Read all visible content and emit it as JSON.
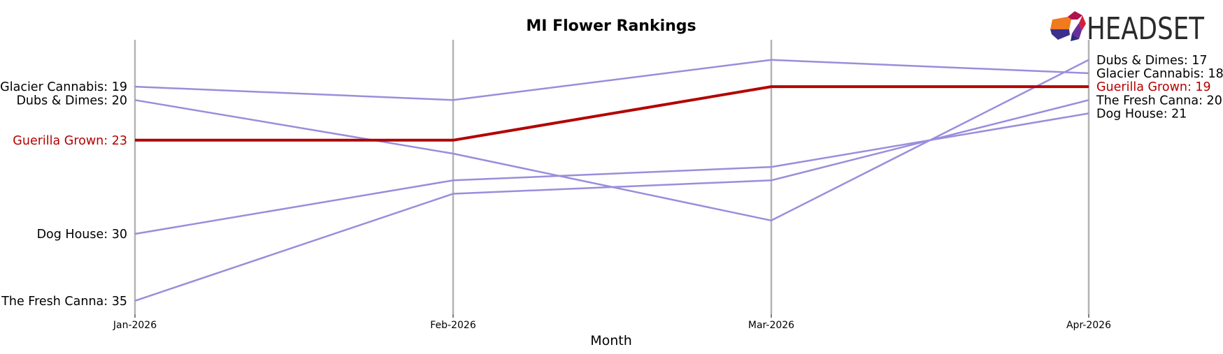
{
  "chart_data": {
    "type": "line",
    "title": "MI Flower Rankings",
    "xlabel": "Month",
    "ylabel": "",
    "categories": [
      "Jan-2026",
      "Feb-2026",
      "Mar-2026",
      "Apr-2026"
    ],
    "y_inverted": true,
    "ylim": [
      15.5,
      36
    ],
    "grid": false,
    "highlight_color": "#b30000",
    "line_color": "#9b8ddb",
    "axis_line_color": "#b3b3b3",
    "series": [
      {
        "name": "Glacier Cannabis",
        "values": [
          19,
          20,
          17,
          18
        ],
        "highlight": false
      },
      {
        "name": "Dubs & Dimes",
        "values": [
          20,
          24,
          29,
          17
        ],
        "highlight": false
      },
      {
        "name": "Guerilla Grown",
        "values": [
          23,
          23,
          19,
          19
        ],
        "highlight": true
      },
      {
        "name": "Dog House",
        "values": [
          30,
          26,
          25,
          21
        ],
        "highlight": false
      },
      {
        "name": "The Fresh Canna",
        "values": [
          35,
          27,
          26,
          20
        ],
        "highlight": false
      }
    ],
    "left_labels": [
      "Glacier Cannabis: 19",
      "Dubs & Dimes: 20",
      "Guerilla Grown: 23",
      "Dog House: 30",
      "The Fresh Canna: 35"
    ],
    "right_labels": [
      "Dubs & Dimes: 17",
      "Glacier Cannabis: 18",
      "Guerilla Grown: 19",
      "The Fresh Canna: 20",
      "Dog House: 21"
    ]
  },
  "logo": {
    "text": "HEADSET",
    "icon": "headset-hexagon-logo-icon"
  }
}
